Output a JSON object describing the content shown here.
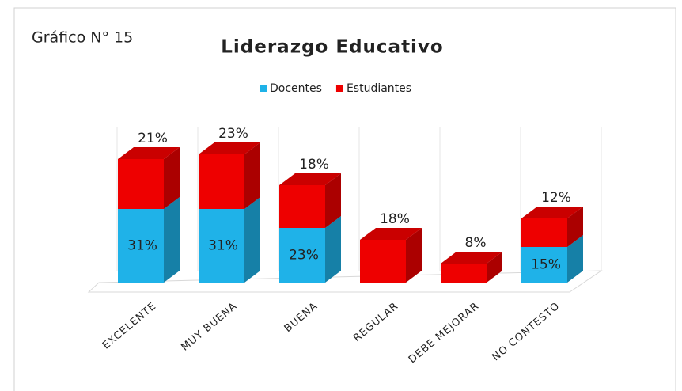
{
  "chart_data": {
    "type": "bar3d_stacked",
    "label": "Gráfico N° 15",
    "title": "Liderazgo Educativo",
    "categories": [
      "EXCELENTE",
      "MUY BUENA",
      "BUENA",
      "REGULAR",
      "DEBE MEJORAR",
      "NO CONTESTÓ"
    ],
    "series": [
      {
        "name": "Docentes",
        "color": "#1fb2e8",
        "values": [
          31,
          31,
          23,
          0,
          0,
          15
        ],
        "value_labels": [
          "31%",
          "31%",
          "23%",
          null,
          null,
          "15%"
        ]
      },
      {
        "name": "Estudiantes",
        "color": "#ee0000",
        "values": [
          21,
          23,
          18,
          18,
          8,
          12
        ],
        "value_labels": [
          "21%",
          "23%",
          "18%",
          "18%",
          "8%",
          "12%"
        ]
      }
    ],
    "legend": "top"
  }
}
